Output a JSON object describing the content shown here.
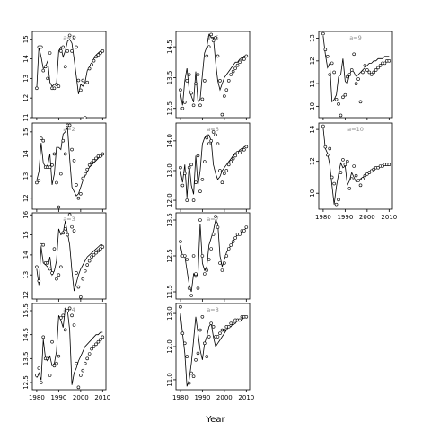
{
  "chart_data": {
    "type": "line",
    "xlabel": "Year",
    "ylabel": "",
    "x": [
      1980,
      1981,
      1982,
      1983,
      1984,
      1985,
      1986,
      1987,
      1988,
      1989,
      1990,
      1991,
      1992,
      1993,
      1994,
      1995,
      1996,
      1997,
      1998,
      1999,
      2000,
      2001,
      2002,
      2003,
      2004,
      2005,
      2006,
      2007,
      2008,
      2009,
      2010
    ],
    "xlim": [
      1978,
      2011.5
    ],
    "x_ticks": [
      "1980",
      "1990",
      "2000",
      "2010"
    ],
    "layout": "faceted grid, 3 columns",
    "panels": [
      {
        "label": "a=1",
        "ylim": [
          11.0,
          15.4
        ],
        "y_ticks": [
          "11",
          "12",
          "13",
          "14",
          "15"
        ],
        "fit": [
          12.5,
          14.6,
          14.1,
          13.5,
          13.6,
          13.9,
          12.8,
          12.6,
          12.7,
          12.7,
          14.4,
          14.6,
          14.1,
          14.4,
          14.9,
          15.0,
          14.8,
          14.0,
          13.1,
          12.2,
          12.7,
          12.6,
          12.8,
          13.4,
          13.6,
          13.8,
          14.0,
          14.2,
          14.3,
          14.4,
          14.4
        ],
        "points": [
          12.5,
          14.6,
          14.6,
          13.4,
          13.6,
          13.0,
          14.3,
          12.5,
          12.5,
          12.7,
          12.6,
          14.4,
          14.6,
          13.6,
          14.4,
          15.2,
          14.4,
          15.1,
          14.6,
          12.9,
          12.4,
          12.9,
          11.0,
          12.8,
          13.5,
          13.7,
          13.9,
          14.1,
          14.2,
          14.3,
          14.4
        ]
      },
      {
        "label": "a=2",
        "ylim": [
          11.5,
          15.4
        ],
        "y_ticks": [
          "12",
          "13",
          "14",
          "15"
        ],
        "fit": [
          12.8,
          13.2,
          14.5,
          13.6,
          13.4,
          13.5,
          14.0,
          12.6,
          13.1,
          14.3,
          14.3,
          14.2,
          14.9,
          15.0,
          15.2,
          13.8,
          12.5,
          12.3,
          12.1,
          12.2,
          12.5,
          12.8,
          13.0,
          13.2,
          13.4,
          13.5,
          13.6,
          13.7,
          13.8,
          13.9,
          13.9
        ],
        "points": [
          12.7,
          12.8,
          14.7,
          14.6,
          13.4,
          13.4,
          13.4,
          13.5,
          14.0,
          12.7,
          11.6,
          13.1,
          14.6,
          14.0,
          15.3,
          15.3,
          14.2,
          13.7,
          12.6,
          12.0,
          12.2,
          12.9,
          13.1,
          13.3,
          13.5,
          13.6,
          13.7,
          13.8,
          13.9,
          13.9,
          14.0
        ]
      },
      {
        "label": "a=3",
        "ylim": [
          11.8,
          16.1
        ],
        "y_ticks": [
          "12",
          "13",
          "14",
          "15",
          "16"
        ],
        "fit": [
          13.3,
          12.5,
          14.4,
          13.6,
          13.5,
          13.4,
          13.9,
          13.0,
          13.2,
          13.7,
          15.3,
          15.0,
          15.1,
          15.7,
          15.1,
          14.5,
          13.2,
          12.2,
          12.6,
          13.0,
          13.3,
          13.5,
          13.7,
          13.9,
          14.0,
          14.1,
          14.2,
          14.3,
          14.4,
          14.5,
          14.5
        ],
        "points": [
          13.4,
          12.7,
          14.5,
          14.5,
          13.6,
          13.6,
          13.3,
          13.1,
          14.3,
          12.8,
          13.0,
          13.4,
          15.1,
          15.3,
          15.0,
          16.0,
          15.4,
          15.2,
          13.1,
          12.4,
          11.9,
          12.8,
          13.2,
          13.5,
          13.7,
          13.9,
          14.0,
          14.1,
          14.2,
          14.3,
          14.4
        ]
      },
      {
        "label": "a=4",
        "ylim": [
          12.2,
          15.8
        ],
        "y_ticks": [
          "12.5",
          "13.5",
          "14.5",
          "15.5"
        ],
        "fit": [
          12.7,
          12.9,
          12.6,
          14.3,
          13.5,
          13.4,
          13.6,
          13.2,
          13.3,
          13.8,
          15.3,
          15.1,
          14.8,
          15.6,
          15.5,
          14.7,
          12.4,
          12.9,
          13.1,
          13.4,
          13.6,
          13.8,
          14.0,
          14.1,
          14.2,
          14.3,
          14.4,
          14.5,
          14.5,
          14.6,
          14.6
        ],
        "points": [
          12.8,
          13.1,
          12.5,
          14.4,
          13.5,
          13.5,
          12.8,
          14.2,
          13.2,
          13.3,
          13.6,
          15.2,
          15.3,
          14.7,
          15.5,
          15.6,
          15.3,
          14.9,
          13.3,
          12.3,
          12.8,
          13.0,
          13.3,
          13.5,
          13.7,
          13.9,
          14.0,
          14.1,
          14.2,
          14.3,
          14.4
        ]
      },
      {
        "label": "a=5",
        "ylim": [
          12.2,
          15.0
        ],
        "y_ticks": [
          "12.5",
          "13.5",
          "14.5"
        ],
        "fit": [
          13.0,
          12.6,
          13.4,
          13.8,
          13.1,
          12.9,
          12.7,
          13.7,
          12.7,
          12.8,
          13.6,
          14.3,
          14.5,
          14.9,
          14.8,
          14.8,
          14.0,
          13.4,
          13.1,
          13.3,
          13.5,
          13.6,
          13.7,
          13.8,
          13.9,
          14.0,
          14.0,
          14.1,
          14.1,
          14.2,
          14.2
        ],
        "points": [
          13.1,
          12.5,
          12.7,
          13.4,
          13.6,
          13.0,
          12.6,
          13.3,
          13.6,
          12.6,
          12.8,
          13.4,
          14.2,
          14.5,
          14.9,
          14.7,
          14.8,
          14.2,
          13.4,
          12.3,
          12.9,
          13.1,
          13.4,
          13.6,
          13.7,
          13.8,
          13.9,
          14.0,
          14.1,
          14.1,
          14.2
        ]
      },
      {
        "label": "a=6",
        "ylim": [
          11.7,
          14.6
        ],
        "y_ticks": [
          "12.0",
          "13.0",
          "14.0"
        ],
        "fit": [
          13.0,
          12.6,
          13.2,
          12.1,
          13.2,
          12.5,
          12.2,
          13.5,
          12.5,
          13.0,
          13.9,
          14.1,
          14.2,
          14.2,
          14.0,
          13.2,
          12.9,
          12.7,
          12.8,
          13.0,
          13.1,
          13.2,
          13.3,
          13.4,
          13.5,
          13.6,
          13.6,
          13.7,
          13.7,
          13.8,
          13.8
        ],
        "points": [
          13.1,
          12.5,
          12.9,
          12.0,
          13.1,
          13.2,
          12.0,
          12.6,
          13.5,
          12.3,
          12.7,
          13.3,
          14.1,
          13.9,
          14.0,
          14.3,
          14.2,
          13.9,
          13.0,
          12.6,
          12.9,
          13.0,
          13.2,
          13.3,
          13.4,
          13.5,
          13.6,
          13.6,
          13.7,
          13.7,
          13.8
        ]
      },
      {
        "label": "a=7",
        "ylim": [
          11.3,
          13.7
        ],
        "y_ticks": [
          "11.5",
          "12.5",
          "13.5"
        ],
        "fit": [
          12.8,
          12.5,
          12.5,
          12.1,
          11.7,
          11.5,
          12.0,
          11.9,
          12.0,
          13.4,
          12.3,
          12.1,
          12.2,
          12.8,
          13.0,
          13.2,
          13.5,
          13.4,
          12.5,
          12.2,
          12.4,
          12.6,
          12.7,
          12.8,
          12.9,
          13.0,
          13.1,
          13.1,
          13.2,
          13.2,
          13.3
        ],
        "points": [
          12.9,
          12.5,
          12.5,
          12.4,
          11.6,
          11.4,
          12.5,
          12.0,
          11.6,
          13.5,
          12.5,
          12.0,
          12.1,
          12.4,
          12.7,
          13.1,
          13.6,
          13.3,
          12.3,
          12.1,
          12.3,
          12.5,
          12.7,
          12.8,
          12.9,
          13.0,
          13.1,
          13.1,
          13.2,
          13.2,
          13.3
        ]
      },
      {
        "label": "a=8",
        "ylim": [
          10.7,
          13.3
        ],
        "y_ticks": [
          "11.0",
          "12.0",
          "13.0"
        ],
        "fit": [
          13.0,
          12.4,
          11.8,
          10.8,
          11.0,
          11.5,
          12.2,
          12.9,
          12.4,
          11.9,
          11.6,
          12.1,
          12.3,
          12.6,
          12.7,
          12.3,
          12.0,
          12.1,
          12.2,
          12.3,
          12.4,
          12.5,
          12.6,
          12.6,
          12.7,
          12.7,
          12.8,
          12.8,
          12.8,
          12.9,
          12.9
        ],
        "points": [
          13.2,
          12.4,
          12.1,
          11.7,
          10.9,
          11.2,
          11.1,
          11.6,
          11.8,
          12.5,
          12.9,
          12.1,
          11.7,
          12.3,
          12.7,
          12.6,
          12.3,
          12.3,
          12.4,
          12.5,
          12.5,
          12.6,
          12.6,
          12.7,
          12.7,
          12.8,
          12.8,
          12.8,
          12.9,
          12.9,
          12.9
        ]
      },
      {
        "label": "a=9",
        "ylim": [
          9.5,
          13.3
        ],
        "y_ticks": [
          "10",
          "11",
          "12",
          "13"
        ],
        "fit": [
          13.1,
          12.3,
          11.7,
          11.9,
          10.2,
          10.3,
          10.5,
          11.3,
          11.4,
          12.1,
          11.1,
          11.0,
          11.4,
          11.6,
          11.5,
          11.3,
          11.4,
          11.5,
          11.6,
          11.7,
          11.8,
          11.9,
          11.9,
          12.0,
          12.0,
          12.1,
          12.1,
          12.1,
          12.2,
          12.2,
          12.2
        ],
        "points": [
          13.2,
          12.5,
          12.2,
          11.4,
          11.9,
          11.5,
          10.3,
          10.1,
          9.6,
          10.4,
          10.5,
          11.3,
          11.4,
          11.6,
          12.3,
          11.0,
          11.2,
          10.2,
          11.5,
          11.8,
          11.6,
          11.5,
          11.4,
          11.5,
          11.6,
          11.7,
          11.8,
          11.9,
          11.9,
          12.0,
          12.0
        ]
      },
      {
        "label": "a=10",
        "ylim": [
          9.0,
          14.4
        ],
        "y_ticks": [
          "10",
          "12",
          "14"
        ],
        "fit": [
          14.1,
          12.8,
          12.5,
          11.8,
          10.5,
          9.3,
          10.4,
          11.2,
          11.9,
          11.6,
          11.7,
          10.5,
          10.8,
          11.3,
          11.0,
          10.7,
          10.8,
          10.9,
          11.0,
          11.1,
          11.2,
          11.3,
          11.4,
          11.5,
          11.6,
          11.6,
          11.7,
          11.7,
          11.8,
          11.8,
          11.8
        ],
        "points": [
          14.2,
          12.9,
          12.4,
          12.8,
          11.0,
          10.6,
          9.3,
          9.6,
          11.3,
          12.1,
          11.8,
          12.0,
          10.3,
          10.9,
          11.7,
          11.1,
          10.8,
          10.5,
          10.9,
          11.1,
          11.2,
          11.3,
          11.4,
          11.5,
          11.6,
          11.6,
          11.7,
          11.7,
          11.8,
          11.8,
          11.8
        ]
      }
    ]
  }
}
